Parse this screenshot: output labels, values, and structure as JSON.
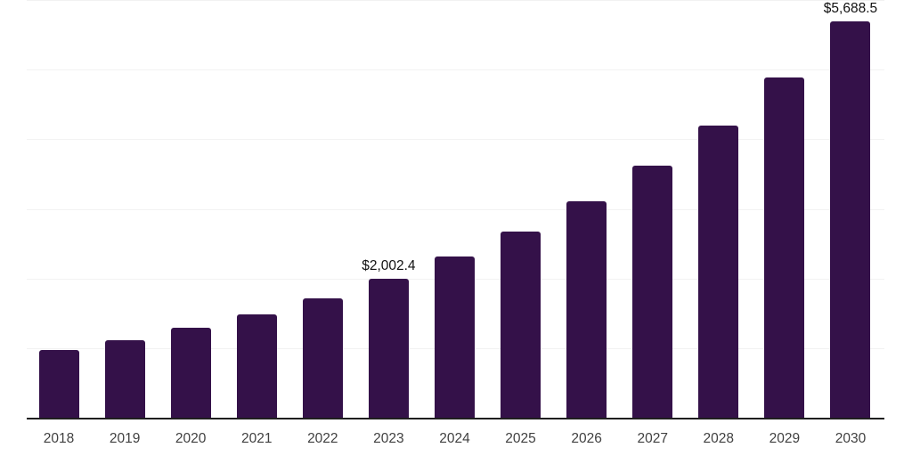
{
  "chart_data": {
    "type": "bar",
    "title": "",
    "xlabel": "",
    "ylabel": "",
    "categories": [
      "2018",
      "2019",
      "2020",
      "2021",
      "2022",
      "2023",
      "2024",
      "2025",
      "2026",
      "2027",
      "2028",
      "2029",
      "2030"
    ],
    "values": [
      985,
      1125,
      1300,
      1495,
      1725,
      2002.4,
      2320,
      2680,
      3110,
      3620,
      4200,
      4890,
      5688.5
    ],
    "data_labels": [
      "",
      "",
      "",
      "",
      "",
      "$2,002.4",
      "",
      "",
      "",
      "",
      "",
      "",
      "$5,688.5"
    ],
    "ylim": [
      0,
      6000
    ],
    "gridline_values": [
      1000,
      2000,
      3000,
      4000,
      5000,
      6000
    ],
    "grid": "horizontal",
    "legend_position": "none",
    "colors": {
      "bar": "#341149",
      "axis_line": "#1f1f1f",
      "gridline": "#f2f2f2",
      "tick_label": "#414141",
      "data_label": "#111111",
      "background": "#ffffff"
    }
  }
}
